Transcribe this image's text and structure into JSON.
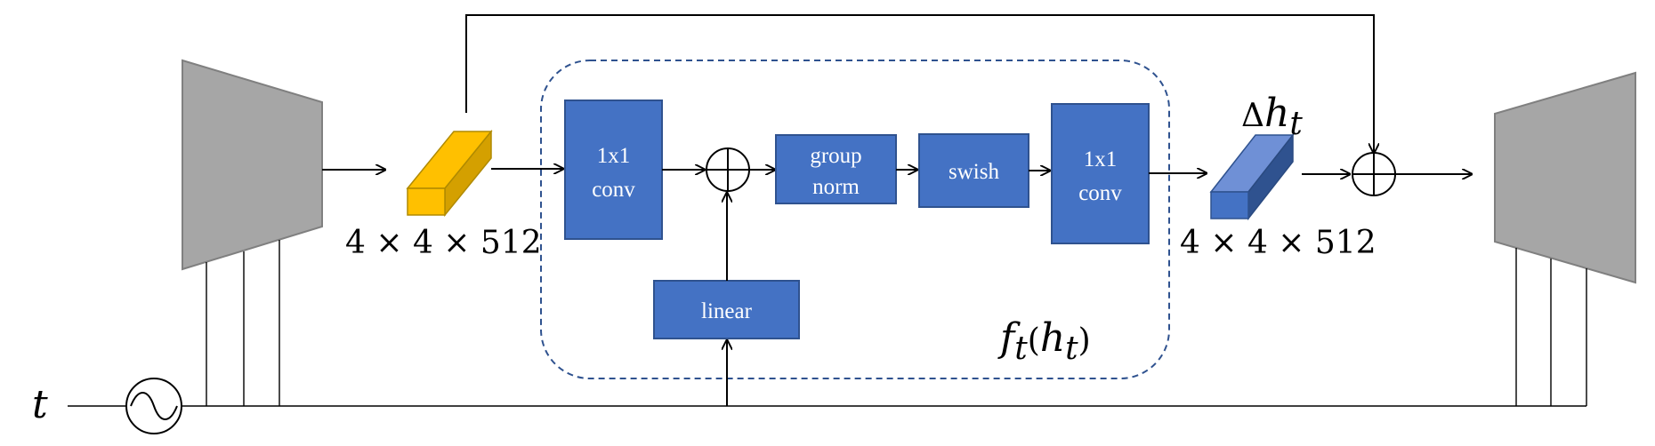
{
  "input_symbol": "t",
  "blocks": {
    "conv_in": {
      "line1": "1x1",
      "line2": "conv"
    },
    "group_norm": {
      "line1": "group",
      "line2": "norm"
    },
    "swish": {
      "label": "swish"
    },
    "conv_out": {
      "line1": "1x1",
      "line2": "conv"
    },
    "linear": {
      "label": "linear"
    }
  },
  "tensors": {
    "h_t": {
      "shape": "4 × 4 × 512"
    },
    "delta_h": {
      "label_prefix": "Δ",
      "label_var": "h",
      "label_sub": "t",
      "shape": "4 × 4 × 512"
    }
  },
  "module_label": {
    "f": "f",
    "sub1": "t",
    "open": "(",
    "h": "h",
    "sub2": "t",
    "close": ")"
  },
  "colors": {
    "block_fill": "#4472c4",
    "block_stroke": "#2f528f",
    "encoder_fill": "#a6a6a6",
    "encoder_stroke": "#808080",
    "tensor_yellow": "#ffc000",
    "tensor_yellow_side": "#d4a000",
    "tensor_blue": "#4472c4",
    "tensor_blue_side": "#2f528f",
    "dashed_border": "#2f528f"
  }
}
